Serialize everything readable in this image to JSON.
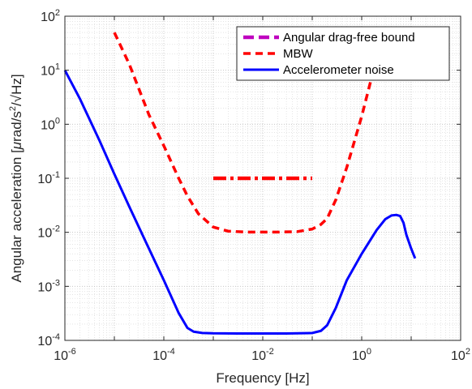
{
  "chart_data": {
    "type": "line",
    "xlabel": "Frequency [Hz]",
    "ylabel_parts": [
      "Angular acceleration [",
      "μ",
      "rad/s",
      "2",
      "/√Hz]"
    ],
    "x_scale": "log",
    "y_scale": "log",
    "xlim": [
      1e-06,
      100
    ],
    "ylim": [
      0.0001,
      100
    ],
    "x_ticks": [
      {
        "value": 1e-06,
        "base": "10",
        "exp": "-6"
      },
      {
        "value": 0.0001,
        "base": "10",
        "exp": "-4"
      },
      {
        "value": 0.01,
        "base": "10",
        "exp": "-2"
      },
      {
        "value": 1,
        "base": "10",
        "exp": "0"
      },
      {
        "value": 100,
        "base": "10",
        "exp": "2"
      }
    ],
    "y_ticks": [
      {
        "value": 0.0001,
        "base": "10",
        "exp": "-4"
      },
      {
        "value": 0.001,
        "base": "10",
        "exp": "-3"
      },
      {
        "value": 0.01,
        "base": "10",
        "exp": "-2"
      },
      {
        "value": 0.1,
        "base": "10",
        "exp": "-1"
      },
      {
        "value": 1,
        "base": "10",
        "exp": "0"
      },
      {
        "value": 10,
        "base": "10",
        "exp": "1"
      },
      {
        "value": 100,
        "base": "10",
        "exp": "2"
      }
    ],
    "grid": true,
    "minor_grid": true,
    "legend_position": "top-right",
    "series": [
      {
        "name": "Angular drag-free bound",
        "color": "#ff0000",
        "legend_color": "#bf00bf",
        "style": "dashdot",
        "x": [
          0.001,
          0.0012,
          0.002,
          0.005,
          0.01,
          0.02,
          0.05,
          0.1
        ],
        "y": [
          0.1,
          0.1,
          0.1,
          0.1,
          0.1,
          0.1,
          0.1,
          0.1
        ]
      },
      {
        "name": "MBW",
        "color": "#ff0000",
        "style": "dashed",
        "x": [
          1e-05,
          2e-05,
          5e-05,
          0.0001,
          0.0002,
          0.0003,
          0.0005,
          0.001,
          0.002,
          0.005,
          0.01,
          0.02,
          0.05,
          0.1,
          0.15,
          0.2,
          0.3,
          0.5,
          1,
          1.5
        ],
        "y": [
          50,
          13,
          1.5,
          0.4,
          0.1,
          0.047,
          0.022,
          0.0125,
          0.0105,
          0.0101,
          0.0101,
          0.0101,
          0.0103,
          0.0115,
          0.014,
          0.018,
          0.04,
          0.16,
          1.4,
          6
        ]
      },
      {
        "name": "Accelerometer noise",
        "color": "#0000ff",
        "style": "solid",
        "x": [
          1e-06,
          2e-06,
          5e-06,
          1e-05,
          2e-05,
          5e-05,
          0.0001,
          0.0002,
          0.0003,
          0.0004,
          0.0006,
          0.001,
          0.003,
          0.01,
          0.03,
          0.1,
          0.15,
          0.2,
          0.3,
          0.5,
          1,
          2,
          3,
          4,
          5,
          6,
          7,
          8,
          10,
          12
        ],
        "y": [
          10,
          3,
          0.5,
          0.12,
          0.03,
          0.005,
          0.0013,
          0.00032,
          0.00017,
          0.000145,
          0.000137,
          0.000135,
          0.000134,
          0.000134,
          0.000134,
          0.000137,
          0.00015,
          0.00019,
          0.0004,
          0.0013,
          0.004,
          0.011,
          0.0175,
          0.0205,
          0.021,
          0.02,
          0.015,
          0.009,
          0.005,
          0.0033
        ]
      }
    ]
  }
}
